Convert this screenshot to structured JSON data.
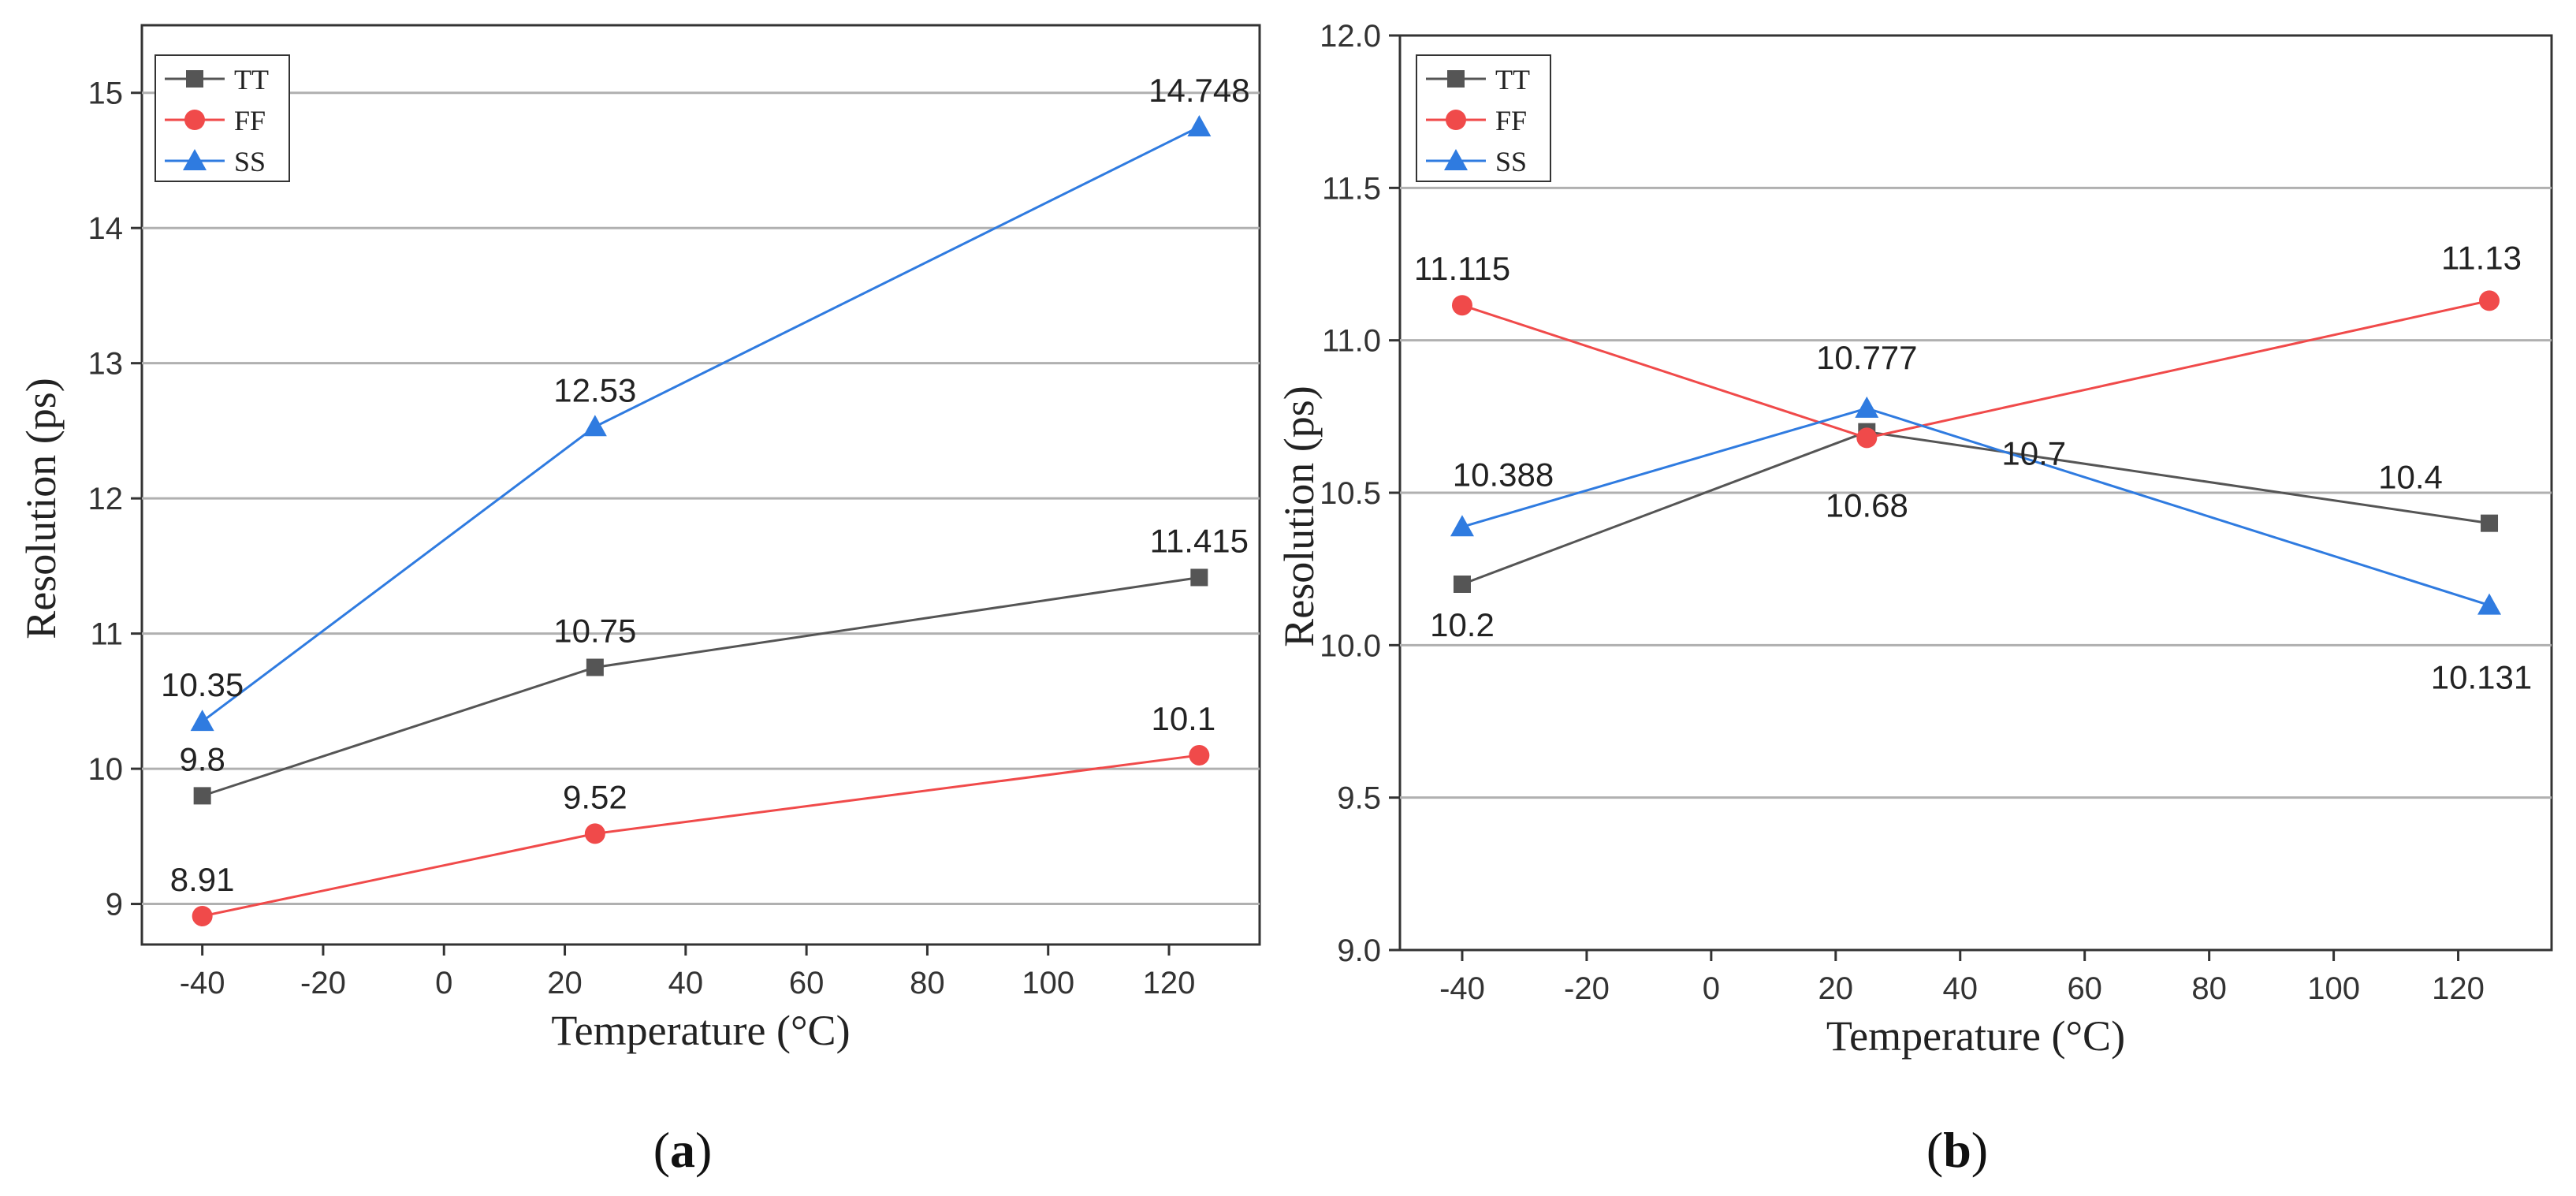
{
  "chart_data": [
    {
      "id": "a",
      "type": "line",
      "caption": "a",
      "title": "",
      "xlabel": "Temperature (°C)",
      "ylabel": "Resolution (ps)",
      "xlim": [
        -50,
        135
      ],
      "ylim": [
        8.7,
        15.5
      ],
      "xticks": [
        -40,
        -20,
        0,
        20,
        40,
        60,
        80,
        100,
        120
      ],
      "yticks": [
        9,
        10,
        11,
        12,
        13,
        14,
        15
      ],
      "ytick_labels": [
        "9",
        "10",
        "11",
        "12",
        "13",
        "14",
        "15"
      ],
      "grid": "horizontal",
      "legend": "top-left",
      "x": [
        -40,
        25,
        125
      ],
      "series": [
        {
          "name": "TT",
          "color": "#555555",
          "marker": "square",
          "values": [
            9.8,
            10.75,
            11.415
          ],
          "labels": [
            "9.8",
            "10.75",
            "11.415"
          ]
        },
        {
          "name": "FF",
          "color": "#f04a4a",
          "marker": "circle",
          "values": [
            8.91,
            9.52,
            10.1
          ],
          "labels": [
            "8.91",
            "9.52",
            "10.1"
          ]
        },
        {
          "name": "SS",
          "color": "#2f7be0",
          "marker": "triangle",
          "values": [
            10.35,
            12.53,
            14.748
          ],
          "labels": [
            "10.35",
            "12.53",
            "14.748"
          ]
        }
      ]
    },
    {
      "id": "b",
      "type": "line",
      "caption": "b",
      "title": "",
      "xlabel": "Temperature (°C)",
      "ylabel": "Resolution (ps)",
      "xlim": [
        -50,
        135
      ],
      "ylim": [
        9.0,
        12.0
      ],
      "xticks": [
        -40,
        -20,
        0,
        20,
        40,
        60,
        80,
        100,
        120
      ],
      "yticks": [
        9.0,
        9.5,
        10.0,
        10.5,
        11.0,
        11.5,
        12.0
      ],
      "ytick_labels": [
        "9.0",
        "9.5",
        "10.0",
        "10.5",
        "11.0",
        "11.5",
        "12.0"
      ],
      "grid": "horizontal",
      "legend": "top-left",
      "x": [
        -40,
        25,
        125
      ],
      "series": [
        {
          "name": "TT",
          "color": "#555555",
          "marker": "square",
          "values": [
            10.2,
            10.7,
            10.4
          ],
          "labels": [
            "10.2",
            "10.7",
            "10.4"
          ]
        },
        {
          "name": "FF",
          "color": "#f04a4a",
          "marker": "circle",
          "values": [
            11.115,
            10.68,
            11.13
          ],
          "labels": [
            "11.115",
            "10.68",
            "11.13"
          ]
        },
        {
          "name": "SS",
          "color": "#2f7be0",
          "marker": "triangle",
          "values": [
            10.388,
            10.777,
            10.131
          ],
          "labels": [
            "10.388",
            "10.777",
            "10.131"
          ]
        }
      ]
    }
  ]
}
